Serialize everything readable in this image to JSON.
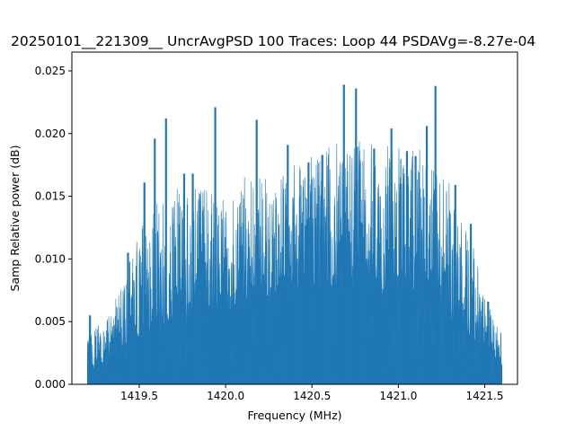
{
  "chart_data": {
    "type": "line",
    "title": "20250101__221309__ UncrAvgPSD 100 Traces: Loop 44 PSDAVg=-8.27e-04",
    "xlabel": "Frequency (MHz)",
    "ylabel": "Samp Relative power (dB)",
    "xlim": [
      1419.11,
      1421.69
    ],
    "ylim": [
      0.0,
      0.0265
    ],
    "xticks": [
      1419.5,
      1420.0,
      1420.5,
      1421.0,
      1421.5
    ],
    "xtick_labels": [
      "1419.5",
      "1420.0",
      "1420.5",
      "1421.0",
      "1421.5"
    ],
    "yticks": [
      0.0,
      0.005,
      0.01,
      0.015,
      0.02,
      0.025
    ],
    "ytick_labels": [
      "0.000",
      "0.005",
      "0.010",
      "0.015",
      "0.020",
      "0.025"
    ],
    "grid": false,
    "series": [
      {
        "color": "#1f77b4",
        "x_range": [
          1419.2,
          1421.6
        ],
        "envelope": {
          "x": [
            1419.2,
            1419.3,
            1419.4,
            1419.5,
            1419.6,
            1419.7,
            1419.8,
            1419.9,
            1420.0,
            1420.1,
            1420.2,
            1420.3,
            1420.4,
            1420.5,
            1420.6,
            1420.7,
            1420.8,
            1420.9,
            1421.0,
            1421.1,
            1421.2,
            1421.3,
            1421.4,
            1421.5,
            1421.6
          ],
          "peak": [
            0.0045,
            0.0048,
            0.008,
            0.0125,
            0.0145,
            0.016,
            0.016,
            0.016,
            0.015,
            0.0165,
            0.017,
            0.017,
            0.0185,
            0.019,
            0.019,
            0.0195,
            0.0195,
            0.019,
            0.019,
            0.019,
            0.018,
            0.016,
            0.0135,
            0.007,
            0.004
          ],
          "base": [
            0.001,
            0.0015,
            0.0025,
            0.0035,
            0.0045,
            0.005,
            0.0055,
            0.0055,
            0.0055,
            0.006,
            0.0065,
            0.007,
            0.0075,
            0.0075,
            0.0075,
            0.0075,
            0.0075,
            0.007,
            0.0065,
            0.0065,
            0.006,
            0.005,
            0.004,
            0.0025,
            0.0015
          ]
        },
        "spikes": [
          {
            "x": 1419.215,
            "y": 0.0055
          },
          {
            "x": 1419.435,
            "y": 0.0105
          },
          {
            "x": 1419.53,
            "y": 0.0161
          },
          {
            "x": 1419.59,
            "y": 0.0196
          },
          {
            "x": 1419.655,
            "y": 0.0212
          },
          {
            "x": 1419.76,
            "y": 0.0168
          },
          {
            "x": 1419.81,
            "y": 0.0168
          },
          {
            "x": 1419.94,
            "y": 0.0221
          },
          {
            "x": 1420.18,
            "y": 0.0211
          },
          {
            "x": 1420.36,
            "y": 0.0191
          },
          {
            "x": 1420.48,
            "y": 0.0177
          },
          {
            "x": 1420.56,
            "y": 0.0183
          },
          {
            "x": 1420.685,
            "y": 0.0239
          },
          {
            "x": 1420.755,
            "y": 0.0236
          },
          {
            "x": 1420.86,
            "y": 0.0188
          },
          {
            "x": 1420.96,
            "y": 0.0204
          },
          {
            "x": 1421.05,
            "y": 0.0186
          },
          {
            "x": 1421.1,
            "y": 0.0182
          },
          {
            "x": 1421.165,
            "y": 0.0206
          },
          {
            "x": 1421.215,
            "y": 0.0238
          },
          {
            "x": 1421.33,
            "y": 0.0159
          },
          {
            "x": 1421.42,
            "y": 0.0128
          },
          {
            "x": 1421.52,
            "y": 0.0066
          }
        ]
      }
    ]
  }
}
